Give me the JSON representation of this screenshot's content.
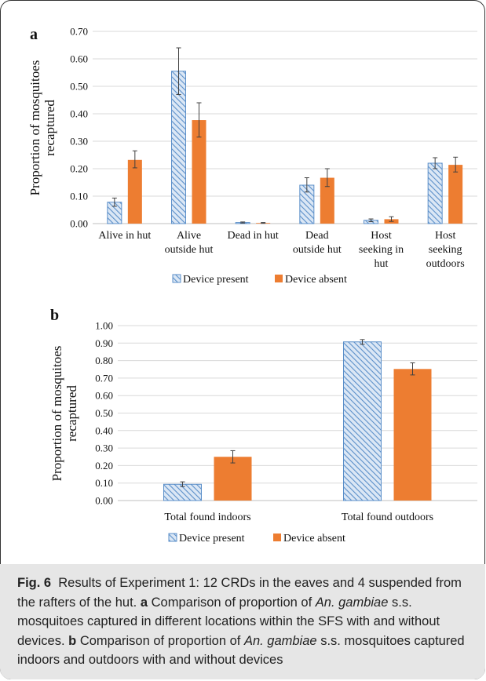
{
  "caption": {
    "fig_label": "Fig. 6",
    "intro": "Results of Experiment 1: 12 CRDs in the eaves and 4 suspended from the rafters of the hut.",
    "a_label": "a",
    "a_text_1": "Comparison of proportion of",
    "a_species": "An. gambiae",
    "a_text_2": "s.s. mosquitoes captured in different locations within the SFS with and without devices.",
    "b_label": "b",
    "b_text_1": "Comparison of proportion of",
    "b_species": "An. gambiae",
    "b_text_2": "s.s. mosquitoes captured indoors and outdoors with and without devices"
  },
  "colors": {
    "device_present_stroke": "#5b8fc9",
    "device_present_fill": "#dbe7f5",
    "device_absent": "#ed7d31",
    "gridline": "#d9d9d9",
    "axis": "#bfbfbf"
  },
  "chart_data": [
    {
      "panel": "a",
      "type": "bar",
      "ylabel": "Proportion of mosquitoes recaptured",
      "ylabel_lines": [
        "Proportion of mosquitoes",
        "recaptured"
      ],
      "ylim": [
        0,
        0.7
      ],
      "yticks": [
        "0.00",
        "0.10",
        "0.20",
        "0.30",
        "0.40",
        "0.50",
        "0.60",
        "0.70"
      ],
      "categories": [
        "Alive in hut",
        "Alive outside hut",
        "Dead in hut",
        "Dead outside hut",
        "Host seeking in hut",
        "Host seeking outdoors"
      ],
      "category_lines": [
        [
          "Alive in hut"
        ],
        [
          "Alive",
          "outside hut"
        ],
        [
          "Dead in hut"
        ],
        [
          "Dead",
          "outside hut"
        ],
        [
          "Host",
          "seeking in",
          "hut"
        ],
        [
          "Host",
          "seeking",
          "outdoors"
        ]
      ],
      "series": [
        {
          "name": "Device present",
          "values": [
            0.078,
            0.555,
            0.004,
            0.14,
            0.012,
            0.22
          ],
          "err_low": [
            0.063,
            0.47,
            0.002,
            0.115,
            0.007,
            0.2
          ],
          "err_high": [
            0.093,
            0.64,
            0.006,
            0.167,
            0.017,
            0.24
          ]
        },
        {
          "name": "Device absent",
          "values": [
            0.232,
            0.377,
            0.002,
            0.167,
            0.016,
            0.214
          ],
          "err_low": [
            0.203,
            0.315,
            0.001,
            0.135,
            0.008,
            0.188
          ],
          "err_high": [
            0.265,
            0.44,
            0.004,
            0.2,
            0.025,
            0.242
          ]
        }
      ],
      "grid": true,
      "legend": "bottom"
    },
    {
      "panel": "b",
      "type": "bar",
      "ylabel": "Proportion of mosquitoes recaptured",
      "ylabel_lines": [
        "Proportion of mosquitoes",
        "recaptured"
      ],
      "ylim": [
        0,
        1.0
      ],
      "yticks": [
        "0.00",
        "0.10",
        "0.20",
        "0.30",
        "0.40",
        "0.50",
        "0.60",
        "0.70",
        "0.80",
        "0.90",
        "1.00"
      ],
      "categories": [
        "Total found indoors",
        "Total found outdoors"
      ],
      "category_lines": [
        [
          "Total found indoors"
        ],
        [
          "Total found outdoors"
        ]
      ],
      "series": [
        {
          "name": "Device present",
          "values": [
            0.093,
            0.907
          ],
          "err_low": [
            0.08,
            0.893
          ],
          "err_high": [
            0.107,
            0.92
          ]
        },
        {
          "name": "Device absent",
          "values": [
            0.25,
            0.752
          ],
          "err_low": [
            0.215,
            0.718
          ],
          "err_high": [
            0.285,
            0.787
          ]
        }
      ],
      "grid": true,
      "legend": "bottom"
    }
  ]
}
